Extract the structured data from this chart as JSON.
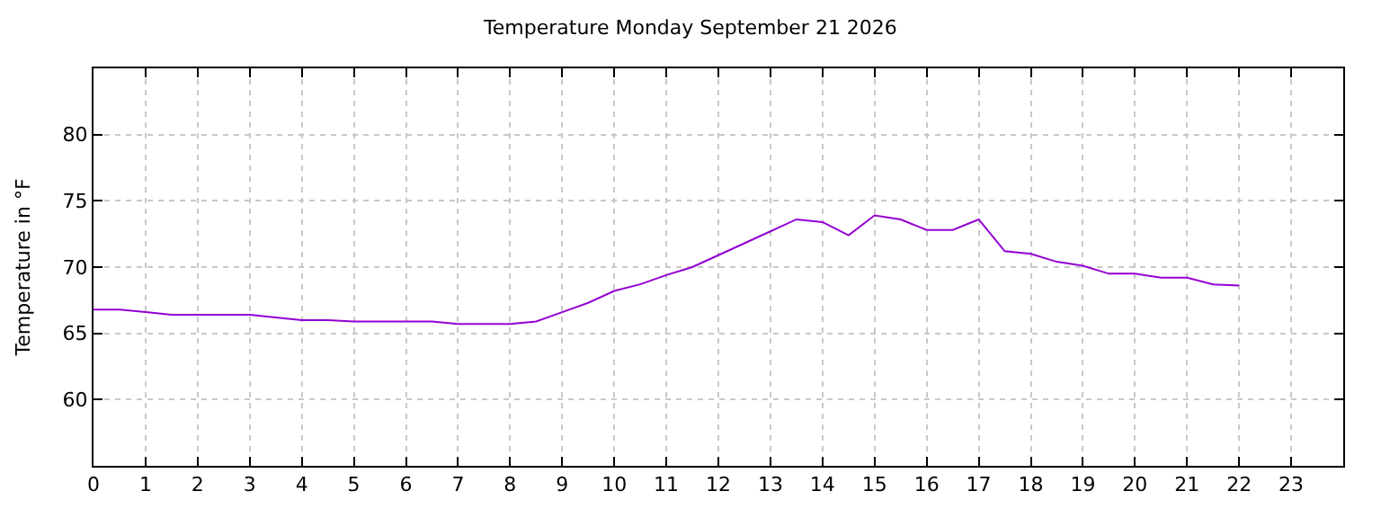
{
  "chart_data": {
    "type": "line",
    "title": "Temperature Monday September 21 2026",
    "ylabel": "Temperature in °F",
    "x": [
      0,
      0.5,
      1,
      1.5,
      2,
      2.5,
      3,
      3.5,
      4,
      4.5,
      5,
      5.5,
      6,
      6.5,
      7,
      7.5,
      8,
      8.5,
      9,
      9.5,
      10,
      10.5,
      11,
      11.5,
      12,
      12.5,
      13,
      13.5,
      14,
      14.5,
      15,
      15.5,
      16,
      16.5,
      17,
      17.5,
      18,
      18.5,
      19,
      19.5,
      20,
      20.5,
      21,
      21.5,
      22
    ],
    "series": [
      {
        "color": "#9400d3",
        "values": [
          66.8,
          66.8,
          66.6,
          66.4,
          66.4,
          66.4,
          66.4,
          66.2,
          66.0,
          66.0,
          65.9,
          65.9,
          65.9,
          65.9,
          65.7,
          65.7,
          65.7,
          65.9,
          66.6,
          67.3,
          68.2,
          68.7,
          69.4,
          70.0,
          70.9,
          71.8,
          72.7,
          73.6,
          73.4,
          72.4,
          73.9,
          73.6,
          72.8,
          72.8,
          73.6,
          71.2,
          71.0,
          70.4,
          70.1,
          69.5,
          69.5,
          69.2,
          69.2,
          68.7,
          68.6
        ]
      }
    ],
    "xlim": [
      0,
      24
    ],
    "xticks": [
      0,
      1,
      2,
      3,
      4,
      5,
      6,
      7,
      8,
      9,
      10,
      11,
      12,
      13,
      14,
      15,
      16,
      17,
      18,
      19,
      20,
      21,
      22,
      23
    ],
    "ylim": [
      55,
      85
    ],
    "yticks": [
      60,
      65,
      70,
      75,
      80
    ],
    "grid": true,
    "marker": "none",
    "line_style": "solid"
  }
}
